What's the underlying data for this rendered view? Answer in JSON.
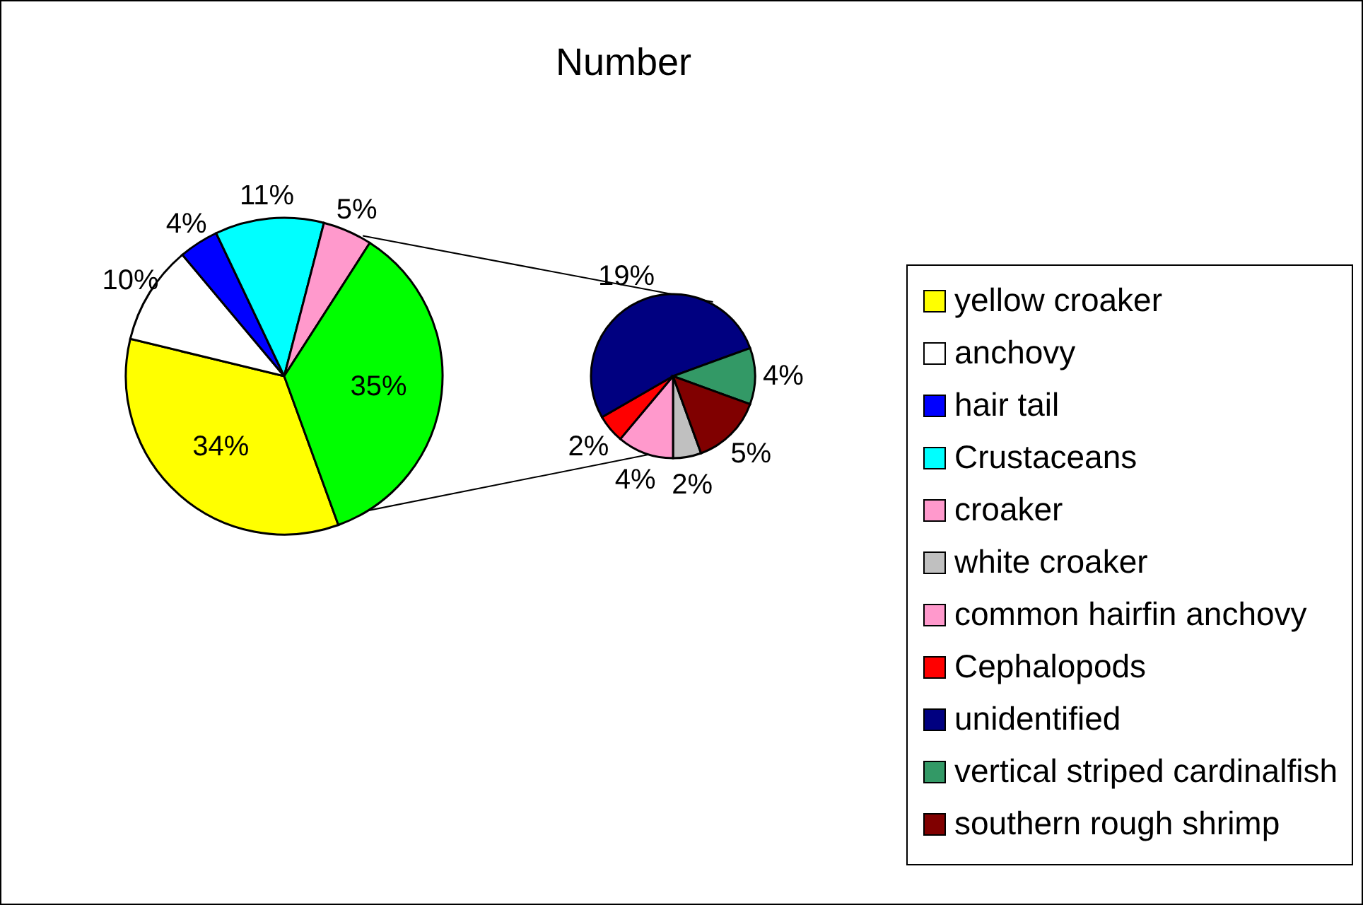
{
  "chart_data": [
    {
      "type": "pie",
      "title": "Number",
      "categories": [
        "yellow croaker",
        "anchovy",
        "hair tail",
        "Crustaceans",
        "croaker",
        null
      ],
      "values": [
        34,
        10,
        4,
        11,
        5,
        35
      ],
      "colors": [
        "#ffff00",
        "#ffffff",
        "#0000ff",
        "#00ffff",
        "#ff99cc",
        "#00ff00"
      ],
      "value_labels": [
        "34%",
        "10%",
        "4%",
        "11%",
        "5%",
        "35%"
      ],
      "legend": "right"
    },
    {
      "type": "pie",
      "categories": [
        "white croaker",
        "common hairfin anchovy",
        "Cephalopods",
        "unidentified",
        "vertical striped cardinalfish",
        "southern rough shrimp"
      ],
      "values": [
        2,
        4,
        2,
        19,
        4,
        5
      ],
      "colors": [
        "#c0c0c0",
        "#ff99cc",
        "#ff0000",
        "#000080",
        "#339966",
        "#800000"
      ],
      "value_labels": [
        "2%",
        "4%",
        "2%",
        "19%",
        "4%",
        "5%"
      ],
      "legend": "right"
    }
  ]
}
